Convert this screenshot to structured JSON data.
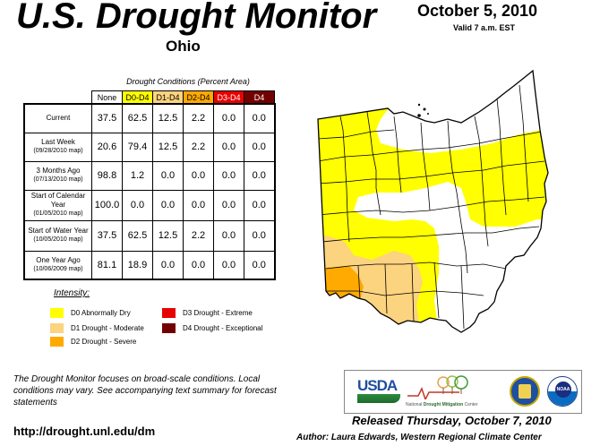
{
  "header": {
    "title": "U.S. Drought Monitor",
    "region": "Ohio",
    "date": "October 5, 2010",
    "valid": "Valid 7 a.m. EST"
  },
  "table": {
    "caption": "Drought Conditions (Percent Area)",
    "columns": [
      {
        "label": "None",
        "bg": "#ffffff",
        "fg": "#000000"
      },
      {
        "label": "D0-D4",
        "bg": "#ffff00",
        "fg": "#000000"
      },
      {
        "label": "D1-D4",
        "bg": "#fcd37f",
        "fg": "#000000"
      },
      {
        "label": "D2-D4",
        "bg": "#ffaa00",
        "fg": "#000000"
      },
      {
        "label": "D3-D4",
        "bg": "#e60000",
        "fg": "#ffffff"
      },
      {
        "label": "D4",
        "bg": "#730000",
        "fg": "#ffffff"
      }
    ],
    "rows": [
      {
        "label": "Current",
        "sub": "",
        "values": [
          "37.5",
          "62.5",
          "12.5",
          "2.2",
          "0.0",
          "0.0"
        ]
      },
      {
        "label": "Last Week",
        "sub": "(09/28/2010 map)",
        "values": [
          "20.6",
          "79.4",
          "12.5",
          "2.2",
          "0.0",
          "0.0"
        ]
      },
      {
        "label": "3 Months Ago",
        "sub": "(07/13/2010 map)",
        "values": [
          "98.8",
          "1.2",
          "0.0",
          "0.0",
          "0.0",
          "0.0"
        ]
      },
      {
        "label": "Start of Calendar Year",
        "sub": "(01/05/2010 map)",
        "values": [
          "100.0",
          "0.0",
          "0.0",
          "0.0",
          "0.0",
          "0.0"
        ]
      },
      {
        "label": "Start of Water Year",
        "sub": "(10/05/2010 map)",
        "values": [
          "37.5",
          "62.5",
          "12.5",
          "2.2",
          "0.0",
          "0.0"
        ]
      },
      {
        "label": "One Year Ago",
        "sub": "(10/06/2009 map)",
        "values": [
          "81.1",
          "18.9",
          "0.0",
          "0.0",
          "0.0",
          "0.0"
        ]
      }
    ]
  },
  "legend": {
    "title": "Intensity:",
    "items": [
      {
        "label": "D0 Abnormally Dry",
        "color": "#ffff00"
      },
      {
        "label": "D1 Drought - Moderate",
        "color": "#fcd37f"
      },
      {
        "label": "D2 Drought - Severe",
        "color": "#ffaa00"
      },
      {
        "label": "D3 Drought - Extreme",
        "color": "#e60000"
      },
      {
        "label": "D4 Drought - Exceptional",
        "color": "#730000"
      }
    ]
  },
  "footer": {
    "note": "The Drought Monitor focuses on broad-scale conditions. Local conditions may vary. See accompanying text summary for forecast statements",
    "url": "http://drought.unl.edu/dm",
    "released": "Released Thursday, October 7, 2010",
    "author": "Author: Laura Edwards, Western Regional Climate Center",
    "logos": {
      "usda": "USDA",
      "ndmc_left": "National",
      "ndmc_mid": "Drought Mitigation",
      "ndmc_right": "Center",
      "noaa": "NOAA"
    }
  },
  "map": {
    "colors": {
      "none": "#ffffff",
      "d0": "#ffff00",
      "d1": "#fcd37f",
      "d2": "#ffaa00",
      "border": "#000000"
    }
  }
}
